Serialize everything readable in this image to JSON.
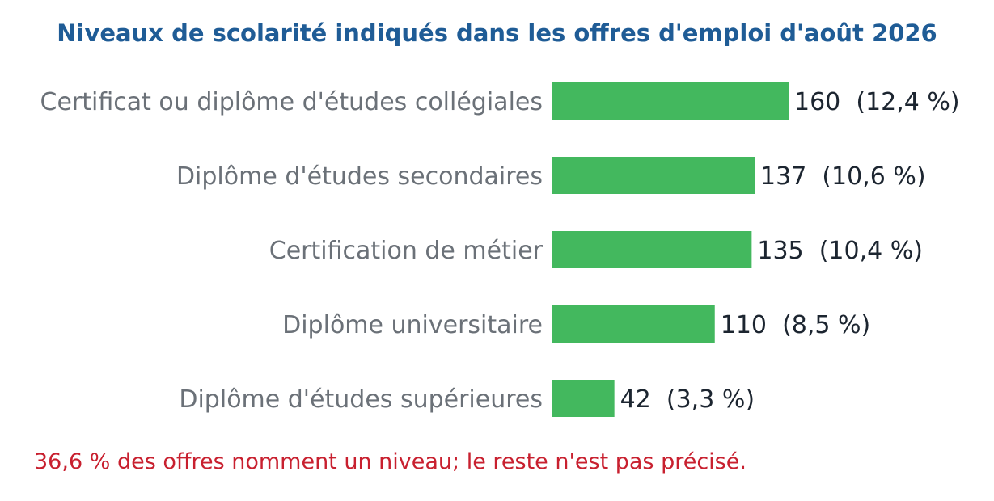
{
  "chart_data": {
    "type": "bar",
    "orientation": "horizontal",
    "title": "Niveaux de scolarité indiqués dans les offres d'emploi d'août 2026",
    "categories": [
      "Certificat ou diplôme d'études collégiales",
      "Diplôme d'études secondaires",
      "Certification de métier",
      "Diplôme universitaire",
      "Diplôme d'études supérieures"
    ],
    "values": [
      160,
      137,
      135,
      110,
      42
    ],
    "value_labels": [
      "160  (12,4 %)",
      "137  (10,6 %)",
      "135  (10,4 %)",
      "110  (8,5 %)",
      "42  (3,3 %)"
    ],
    "bar_color": "#43b85e",
    "xlim": [
      0,
      160
    ],
    "grid": false,
    "note": "36,6 % des offres nomment un niveau; le reste n'est pas précisé."
  },
  "colors": {
    "title": "#1f5c96",
    "bar": "#43b85e",
    "category_text": "#6b7178",
    "value_text": "#1c2530",
    "note": "#c8202f"
  }
}
